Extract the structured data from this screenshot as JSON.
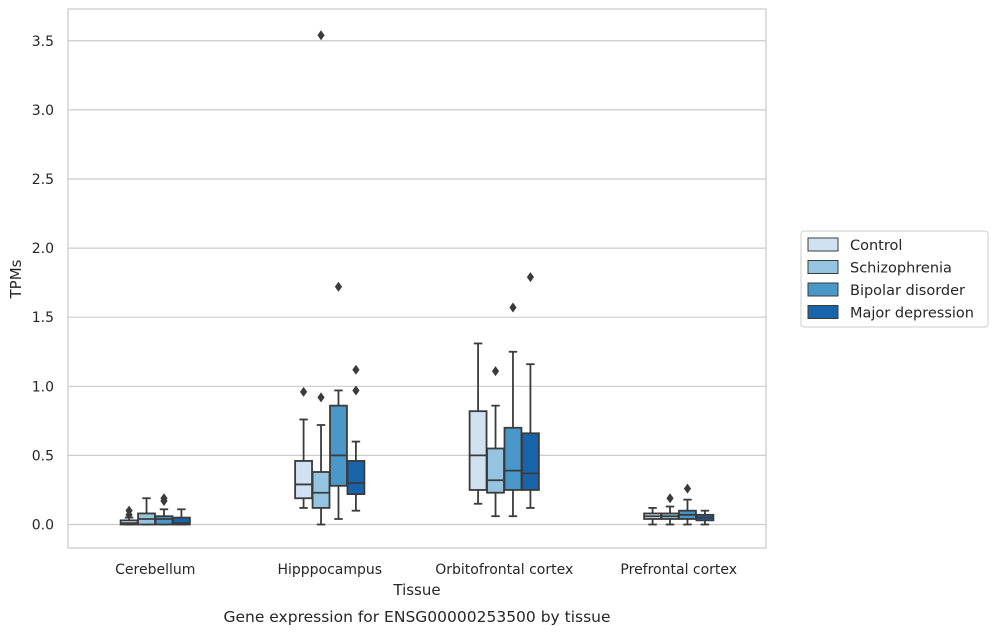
{
  "caption": "Gene expression for ENSG00000253500 by tissue",
  "chart_data": {
    "type": "box",
    "xlabel": "Tissue",
    "ylabel": "TPMs",
    "ylim": [
      -0.17,
      3.73
    ],
    "yticks": [
      0.0,
      0.5,
      1.0,
      1.5,
      2.0,
      2.5,
      3.0,
      3.5
    ],
    "ytick_labels": [
      "0.0",
      "0.5",
      "1.0",
      "1.5",
      "2.0",
      "2.5",
      "3.0",
      "3.5"
    ],
    "grid": "horizontal",
    "legend_position": "right",
    "categories": [
      "Cerebellum",
      "Hipppocampus",
      "Orbitofrontal cortex",
      "Prefrontal cortex"
    ],
    "series": [
      {
        "name": "Control",
        "color": "#d0e1f2",
        "boxes": [
          {
            "whislo": 0.0,
            "q1": 0.0,
            "med": 0.01,
            "q3": 0.03,
            "whishi": 0.05,
            "fliers": [
              0.07,
              0.1
            ]
          },
          {
            "whislo": 0.12,
            "q1": 0.19,
            "med": 0.29,
            "q3": 0.46,
            "whishi": 0.76,
            "fliers": [
              0.96
            ]
          },
          {
            "whislo": 0.15,
            "q1": 0.25,
            "med": 0.5,
            "q3": 0.82,
            "whishi": 1.31,
            "fliers": []
          },
          {
            "whislo": 0.0,
            "q1": 0.04,
            "med": 0.06,
            "q3": 0.08,
            "whishi": 0.12,
            "fliers": []
          }
        ]
      },
      {
        "name": "Schizophrenia",
        "color": "#94c4df",
        "boxes": [
          {
            "whislo": 0.0,
            "q1": 0.0,
            "med": 0.04,
            "q3": 0.08,
            "whishi": 0.19,
            "fliers": []
          },
          {
            "whislo": 0.0,
            "q1": 0.12,
            "med": 0.23,
            "q3": 0.38,
            "whishi": 0.72,
            "fliers": [
              0.92,
              3.54
            ]
          },
          {
            "whislo": 0.06,
            "q1": 0.23,
            "med": 0.32,
            "q3": 0.55,
            "whishi": 0.86,
            "fliers": [
              1.11
            ]
          },
          {
            "whislo": 0.0,
            "q1": 0.04,
            "med": 0.06,
            "q3": 0.08,
            "whishi": 0.13,
            "fliers": [
              0.19
            ]
          }
        ]
      },
      {
        "name": "Bipolar disorder",
        "color": "#4a98c9",
        "boxes": [
          {
            "whislo": 0.0,
            "q1": 0.0,
            "med": 0.04,
            "q3": 0.06,
            "whishi": 0.11,
            "fliers": [
              0.17,
              0.19
            ]
          },
          {
            "whislo": 0.04,
            "q1": 0.28,
            "med": 0.5,
            "q3": 0.86,
            "whishi": 0.97,
            "fliers": [
              1.72
            ]
          },
          {
            "whislo": 0.06,
            "q1": 0.25,
            "med": 0.39,
            "q3": 0.7,
            "whishi": 1.25,
            "fliers": [
              1.57
            ]
          },
          {
            "whislo": 0.0,
            "q1": 0.04,
            "med": 0.07,
            "q3": 0.1,
            "whishi": 0.18,
            "fliers": [
              0.26
            ]
          }
        ]
      },
      {
        "name": "Major depression",
        "color": "#1764ab",
        "boxes": [
          {
            "whislo": 0.0,
            "q1": 0.0,
            "med": 0.01,
            "q3": 0.05,
            "whishi": 0.11,
            "fliers": []
          },
          {
            "whislo": 0.1,
            "q1": 0.22,
            "med": 0.3,
            "q3": 0.46,
            "whishi": 0.6,
            "fliers": [
              0.97,
              1.12
            ]
          },
          {
            "whislo": 0.12,
            "q1": 0.25,
            "med": 0.37,
            "q3": 0.66,
            "whishi": 1.16,
            "fliers": [
              1.79
            ]
          },
          {
            "whislo": 0.0,
            "q1": 0.03,
            "med": 0.05,
            "q3": 0.07,
            "whishi": 0.1,
            "fliers": []
          }
        ]
      }
    ]
  }
}
